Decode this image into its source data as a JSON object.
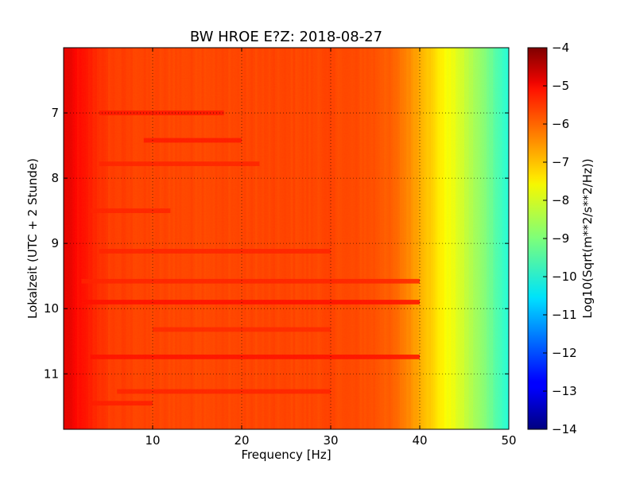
{
  "chart_data": {
    "type": "heatmap",
    "title": "BW HROE E?Z: 2018-08-27",
    "xlabel": "Frequency [Hz]",
    "ylabel": "Lokalzeit (UTC + 2 Stunde)",
    "xlim": [
      0,
      50
    ],
    "ylim": [
      11.85,
      6.0
    ],
    "x_ticks": [
      10,
      20,
      30,
      40,
      50
    ],
    "x_tick_labels": [
      "10",
      "20",
      "30",
      "40",
      "50"
    ],
    "y_ticks": [
      7,
      8,
      9,
      10,
      11
    ],
    "y_tick_labels": [
      "7",
      "8",
      "9",
      "10",
      "11"
    ],
    "grid": true,
    "colorscale": "jet",
    "colorbar": {
      "label": "Log10(Sqrt(m**2/s**2/Hz))",
      "range": [
        -14,
        -4
      ],
      "ticks": [
        -4,
        -5,
        -6,
        -7,
        -8,
        -9,
        -10,
        -11,
        -12,
        -13,
        -14
      ],
      "tick_labels": [
        "−4",
        "−5",
        "−6",
        "−7",
        "−8",
        "−9",
        "−10",
        "−11",
        "−12",
        "−13",
        "−14"
      ]
    },
    "frequency_profile": {
      "frequency_hz": [
        0,
        0.5,
        1.5,
        3,
        5,
        10,
        15,
        20,
        25,
        30,
        35,
        37,
        38.5,
        40,
        41,
        42,
        43,
        44,
        45,
        46,
        47,
        48,
        49,
        50
      ],
      "value": [
        -5.0,
        -5.0,
        -5.3,
        -5.5,
        -5.8,
        -5.9,
        -5.9,
        -5.9,
        -5.9,
        -5.9,
        -6.0,
        -6.2,
        -6.5,
        -6.9,
        -7.2,
        -7.5,
        -7.8,
        -8.0,
        -8.3,
        -8.6,
        -8.9,
        -9.2,
        -9.6,
        -10.0
      ]
    },
    "time_bands": [
      {
        "time": 7.0,
        "freq_range": [
          4,
          18
        ],
        "delta": 0.5
      },
      {
        "time": 7.42,
        "freq_range": [
          9,
          20
        ],
        "delta": 0.45
      },
      {
        "time": 7.78,
        "freq_range": [
          4,
          22
        ],
        "delta": 0.35
      },
      {
        "time": 8.5,
        "freq_range": [
          3,
          12
        ],
        "delta": 0.3
      },
      {
        "time": 9.12,
        "freq_range": [
          4,
          30
        ],
        "delta": 0.35
      },
      {
        "time": 9.58,
        "freq_range": [
          2,
          40
        ],
        "delta": 0.35
      },
      {
        "time": 9.9,
        "freq_range": [
          2,
          40
        ],
        "delta": 0.55
      },
      {
        "time": 10.32,
        "freq_range": [
          10,
          30
        ],
        "delta": 0.3
      },
      {
        "time": 10.74,
        "freq_range": [
          3,
          40
        ],
        "delta": 0.55
      },
      {
        "time": 11.27,
        "freq_range": [
          6,
          30
        ],
        "delta": 0.35
      },
      {
        "time": 11.45,
        "freq_range": [
          3,
          10
        ],
        "delta": 0.35
      }
    ]
  }
}
